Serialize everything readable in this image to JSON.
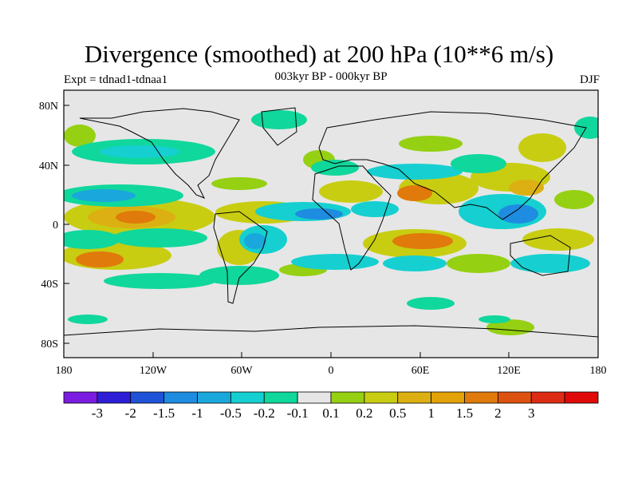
{
  "title": "Divergence (smoothed) at 200 hPa (10**6 m/s)",
  "subtitle": "003kyr BP - 000kyr BP",
  "experiment": "Expt = tdnad1-tdnaa1",
  "season": "DJF",
  "lat_ticks": [
    "80N",
    "40N",
    "0",
    "40S",
    "80S"
  ],
  "lon_ticks": [
    "180",
    "120W",
    "60W",
    "0",
    "60E",
    "120E",
    "180"
  ],
  "colorbar": {
    "colors": [
      "#7a1de0",
      "#2d1ed6",
      "#1f53d7",
      "#1e8ce0",
      "#1aa8dc",
      "#16cfd0",
      "#10d79c",
      "#e6e6e6",
      "#95d012",
      "#c8cd12",
      "#dcb012",
      "#e3a208",
      "#e07a0a",
      "#dd5210",
      "#dd2c14",
      "#e00a0a"
    ],
    "labels": [
      "-3",
      "-2",
      "-1.5",
      "-1",
      "-0.5",
      "-0.2",
      "-0.1",
      "0.1",
      "0.2",
      "0.5",
      "1",
      "1.5",
      "2",
      "3"
    ]
  }
}
